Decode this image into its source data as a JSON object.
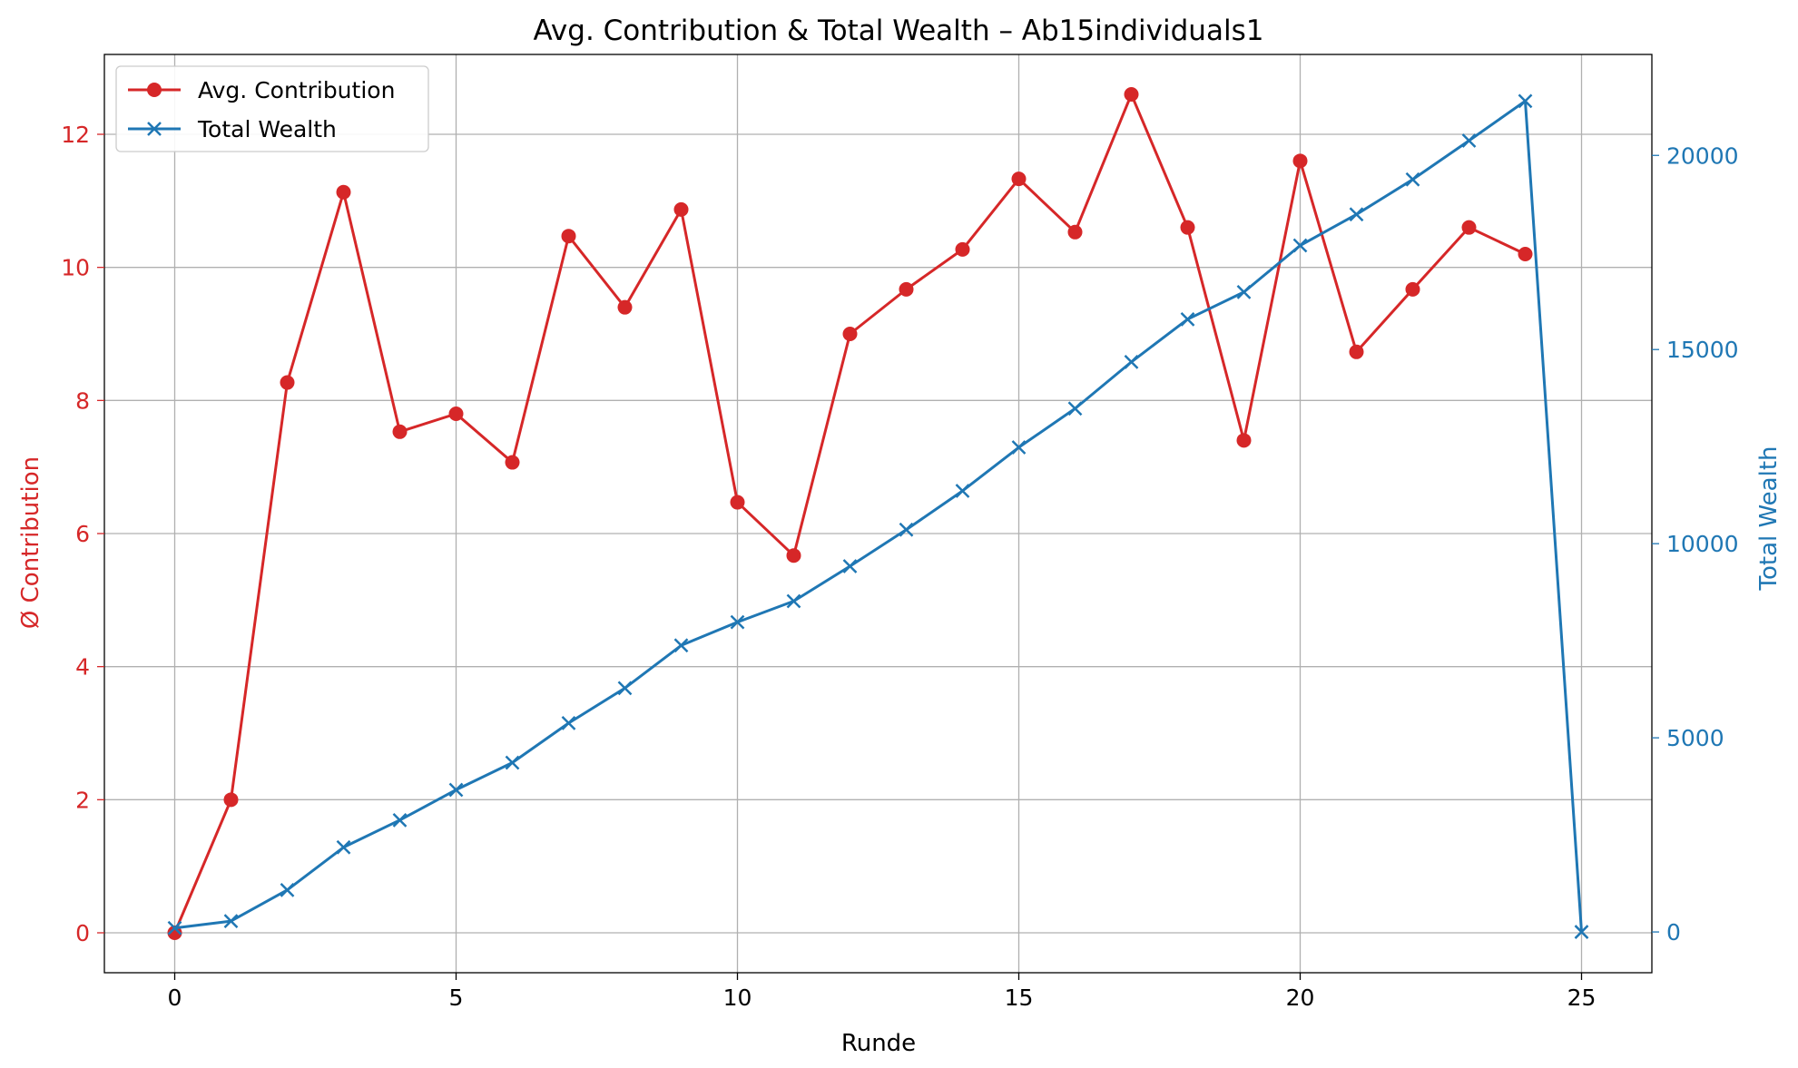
{
  "chart_data": {
    "type": "line",
    "title": "Avg. Contribution & Total Wealth – Ab15individuals1",
    "xlabel": "Runde",
    "ylabel_left": "Ø Contribution",
    "ylabel_right": "Total Wealth",
    "x": [
      0,
      1,
      2,
      3,
      4,
      5,
      6,
      7,
      8,
      9,
      10,
      11,
      12,
      13,
      14,
      15,
      16,
      17,
      18,
      19,
      20,
      21,
      22,
      23,
      24,
      25
    ],
    "xlim": [
      -1.25,
      26.25
    ],
    "xticks": [
      0,
      5,
      10,
      15,
      20,
      25
    ],
    "ylim_left": [
      -0.6,
      13.2
    ],
    "yticks_left": [
      0,
      2,
      4,
      6,
      8,
      10,
      12
    ],
    "ylim_right": [
      -1050,
      22600
    ],
    "yticks_right": [
      0,
      5000,
      10000,
      15000,
      20000
    ],
    "grid": true,
    "legend_position": "upper-left",
    "series": [
      {
        "name": "Avg. Contribution",
        "axis": "left",
        "color": "#d62728",
        "marker": "circle",
        "x": [
          0,
          1,
          2,
          3,
          4,
          5,
          6,
          7,
          8,
          9,
          10,
          11,
          12,
          13,
          14,
          15,
          16,
          17,
          18,
          19,
          20,
          21,
          22,
          23,
          24
        ],
        "values": [
          0.0,
          2.0,
          8.27,
          11.13,
          7.53,
          7.8,
          7.07,
          10.47,
          9.4,
          10.87,
          6.47,
          5.67,
          9.0,
          9.67,
          10.27,
          11.33,
          10.53,
          12.6,
          10.6,
          7.4,
          11.6,
          8.73,
          9.67,
          10.6,
          10.2
        ]
      },
      {
        "name": "Total Wealth",
        "axis": "right",
        "color": "#1f77b4",
        "marker": "x",
        "x": [
          0,
          1,
          2,
          3,
          4,
          5,
          6,
          7,
          8,
          9,
          10,
          11,
          12,
          13,
          14,
          15,
          16,
          17,
          18,
          19,
          20,
          21,
          22,
          23,
          24,
          25
        ],
        "values": [
          100,
          280,
          1080,
          2180,
          2880,
          3660,
          4360,
          5380,
          6280,
          7380,
          7980,
          8520,
          9420,
          10360,
          11360,
          12480,
          13480,
          14680,
          15780,
          16480,
          17680,
          18480,
          19380,
          20380,
          21400,
          0
        ]
      }
    ]
  }
}
